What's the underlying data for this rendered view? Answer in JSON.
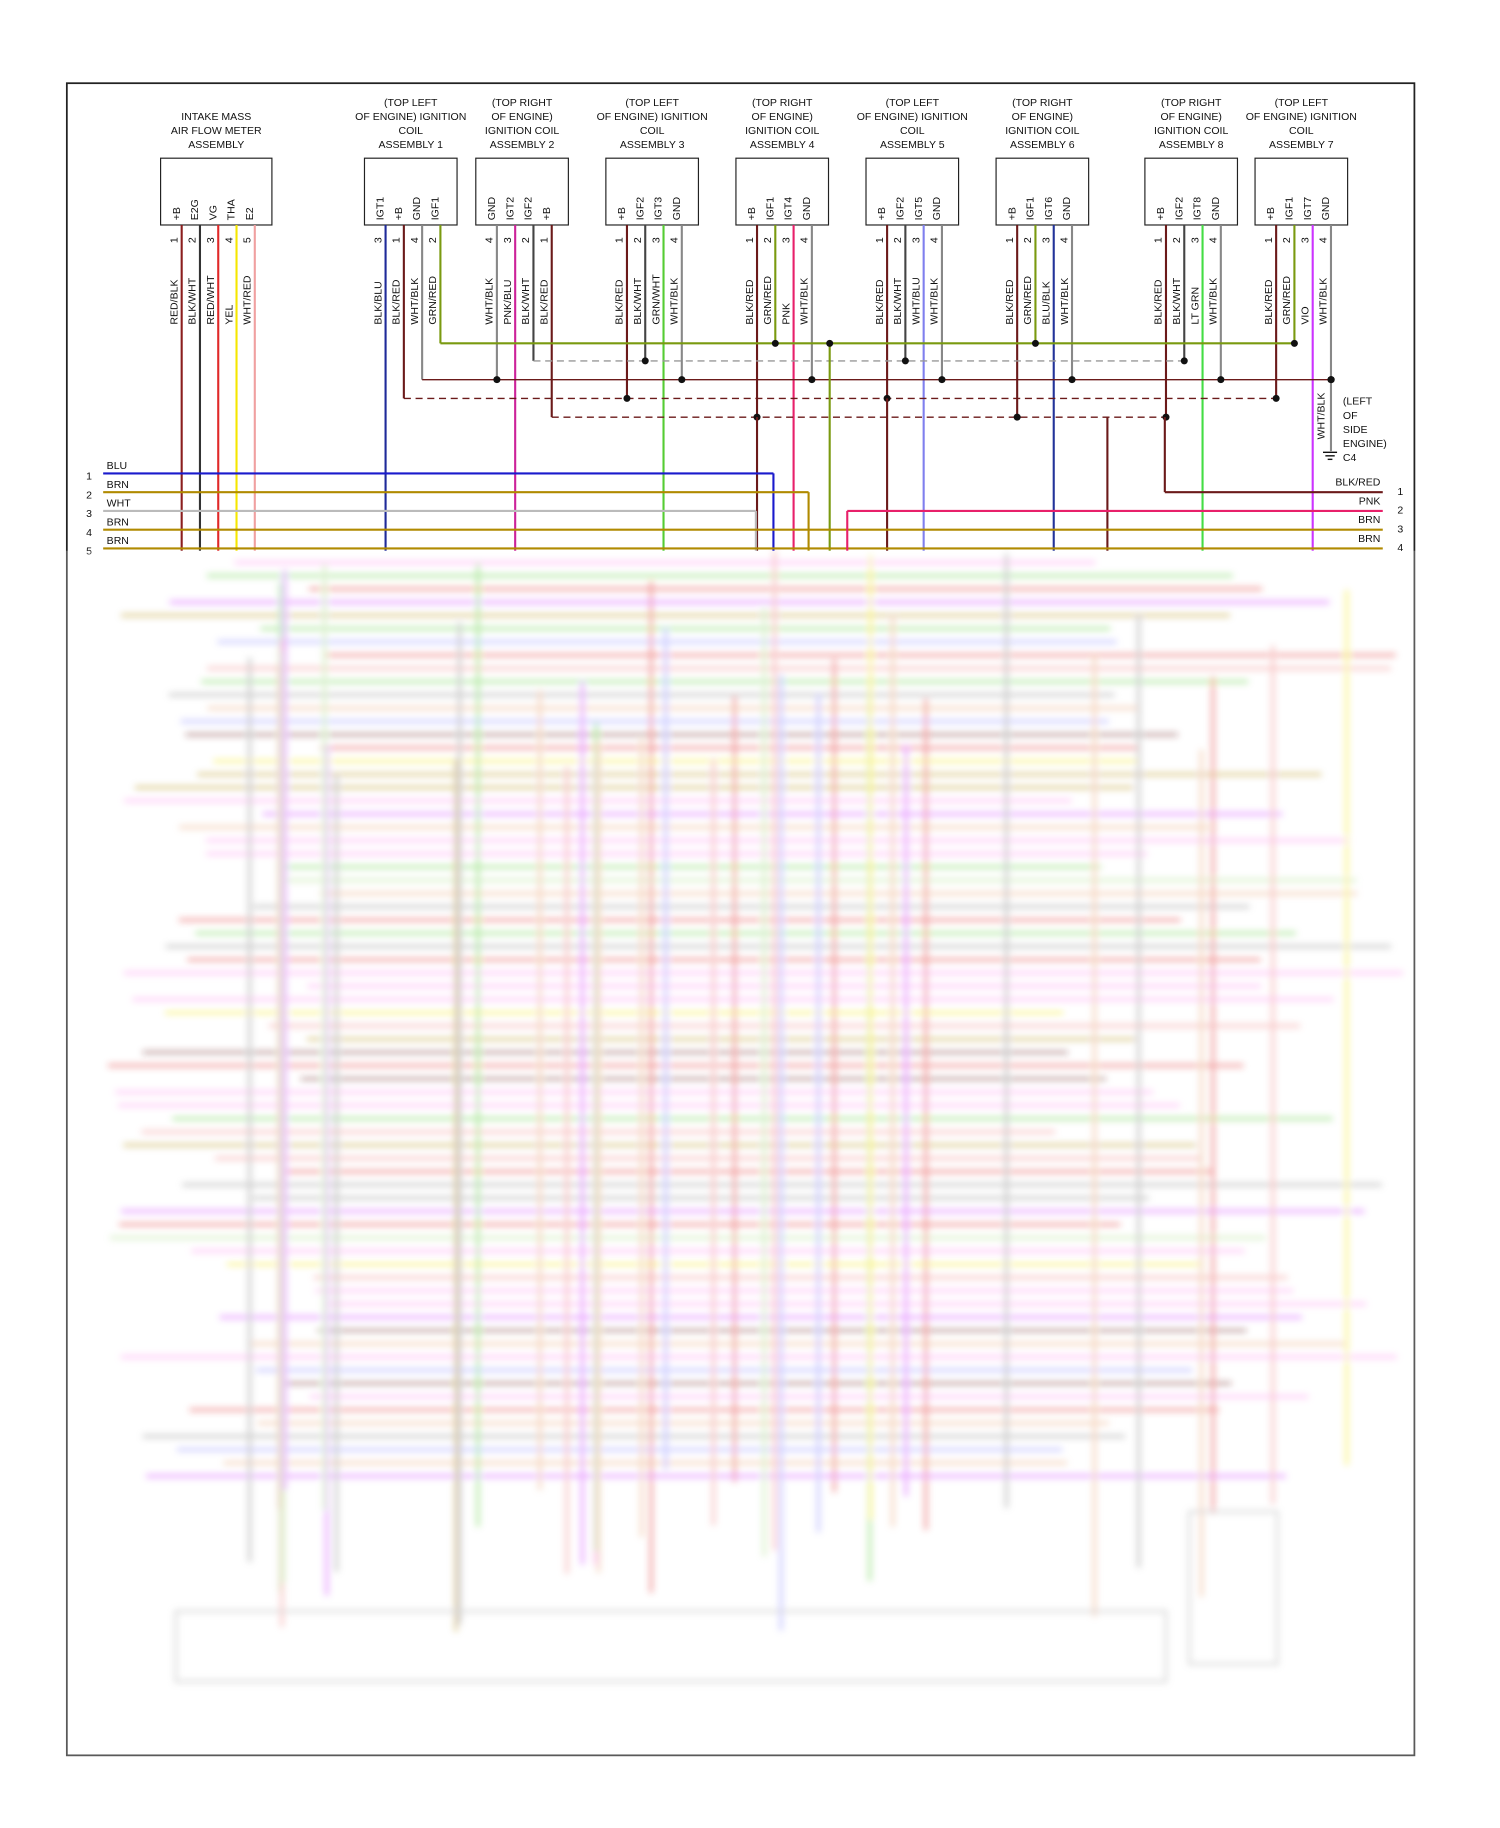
{
  "components": [
    {
      "label": [
        "INTAKE MASS",
        "AIR FLOW METER",
        "ASSEMBLY"
      ],
      "pins": [
        {
          "pin": 1,
          "name": "+B",
          "wire": "RED/BLK",
          "color": "#8b1e1e"
        },
        {
          "pin": 2,
          "name": "E2G",
          "wire": "BLK/WHT",
          "color": "#333333"
        },
        {
          "pin": 3,
          "name": "VG",
          "wire": "RED/WHT",
          "color": "#e02828"
        },
        {
          "pin": 4,
          "name": "THA",
          "wire": "YEL",
          "color": "#f5e600"
        },
        {
          "pin": 5,
          "name": "E2",
          "wire": "WHT/RED",
          "color": "#f0a0a0"
        }
      ]
    },
    {
      "label": [
        "(TOP LEFT",
        "OF ENGINE) IGNITION",
        "COIL",
        "ASSEMBLY 1"
      ],
      "pins": [
        {
          "pin": 3,
          "name": "IGT1",
          "wire": "BLK/BLU",
          "color": "#1f2a99"
        },
        {
          "pin": 1,
          "name": "+B",
          "wire": "BLK/RED",
          "color": "#6b1a1a"
        },
        {
          "pin": 4,
          "name": "GND",
          "wire": "WHT/BLK",
          "color": "#888888"
        },
        {
          "pin": 2,
          "name": "IGF1",
          "wire": "GRN/RED",
          "color": "#7a9a10"
        }
      ]
    },
    {
      "label": [
        "(TOP RIGHT",
        "OF ENGINE)",
        "IGNITION COIL",
        "ASSEMBLY 2"
      ],
      "pins": [
        {
          "pin": 4,
          "name": "GND",
          "wire": "WHT/BLK",
          "color": "#888888"
        },
        {
          "pin": 3,
          "name": "IGT2",
          "wire": "PNK/BLU",
          "color": "#cc2299"
        },
        {
          "pin": 2,
          "name": "IGF2",
          "wire": "BLK/WHT",
          "color": "#444444"
        },
        {
          "pin": 1,
          "name": "+B",
          "wire": "BLK/RED",
          "color": "#6b1a1a"
        }
      ]
    },
    {
      "label": [
        "(TOP LEFT",
        "OF ENGINE) IGNITION",
        "COIL",
        "ASSEMBLY 3"
      ],
      "pins": [
        {
          "pin": 1,
          "name": "+B",
          "wire": "BLK/RED",
          "color": "#6b1a1a"
        },
        {
          "pin": 2,
          "name": "IGF2",
          "wire": "BLK/WHT",
          "color": "#444444"
        },
        {
          "pin": 3,
          "name": "IGT3",
          "wire": "GRN/WHT",
          "color": "#55cc33"
        },
        {
          "pin": 4,
          "name": "GND",
          "wire": "WHT/BLK",
          "color": "#888888"
        }
      ]
    },
    {
      "label": [
        "(TOP RIGHT",
        "OF ENGINE)",
        "IGNITION COIL",
        "ASSEMBLY 4"
      ],
      "pins": [
        {
          "pin": 1,
          "name": "+B",
          "wire": "BLK/RED",
          "color": "#6b1a1a"
        },
        {
          "pin": 2,
          "name": "IGF1",
          "wire": "GRN/RED",
          "color": "#7a9a10"
        },
        {
          "pin": 3,
          "name": "IGT4",
          "wire": "PNK",
          "color": "#e8206a"
        },
        {
          "pin": 4,
          "name": "GND",
          "wire": "WHT/BLK",
          "color": "#888888"
        }
      ]
    },
    {
      "label": [
        "(TOP LEFT",
        "OF ENGINE) IGNITION",
        "COIL",
        "ASSEMBLY 5"
      ],
      "pins": [
        {
          "pin": 1,
          "name": "+B",
          "wire": "BLK/RED",
          "color": "#6b1a1a"
        },
        {
          "pin": 2,
          "name": "IGF2",
          "wire": "BLK/WHT",
          "color": "#444444"
        },
        {
          "pin": 3,
          "name": "IGT5",
          "wire": "WHT/BLU",
          "color": "#7f7fee"
        },
        {
          "pin": 4,
          "name": "GND",
          "wire": "WHT/BLK",
          "color": "#888888"
        }
      ]
    },
    {
      "label": [
        "(TOP RIGHT",
        "OF ENGINE)",
        "IGNITION COIL",
        "ASSEMBLY 6"
      ],
      "pins": [
        {
          "pin": 1,
          "name": "+B",
          "wire": "BLK/RED",
          "color": "#6b1a1a"
        },
        {
          "pin": 2,
          "name": "IGF1",
          "wire": "GRN/RED",
          "color": "#7a9a10"
        },
        {
          "pin": 3,
          "name": "IGT6",
          "wire": "BLU/BLK",
          "color": "#223399"
        },
        {
          "pin": 4,
          "name": "GND",
          "wire": "WHT/BLK",
          "color": "#888888"
        }
      ]
    },
    {
      "label": [
        "(TOP RIGHT",
        "OF ENGINE)",
        "IGNITION COIL",
        "ASSEMBLY 8"
      ],
      "pins": [
        {
          "pin": 1,
          "name": "+B",
          "wire": "BLK/RED",
          "color": "#6b1a1a"
        },
        {
          "pin": 2,
          "name": "IGF2",
          "wire": "BLK/WHT",
          "color": "#444444"
        },
        {
          "pin": 3,
          "name": "IGT8",
          "wire": "LT GRN",
          "color": "#44dd44"
        },
        {
          "pin": 4,
          "name": "GND",
          "wire": "WHT/BLK",
          "color": "#888888"
        }
      ]
    },
    {
      "label": [
        "(TOP LEFT",
        "OF ENGINE) IGNITION",
        "COIL",
        "ASSEMBLY 7"
      ],
      "pins": [
        {
          "pin": 1,
          "name": "+B",
          "wire": "BLK/RED",
          "color": "#6b1a1a"
        },
        {
          "pin": 2,
          "name": "IGF1",
          "wire": "GRN/RED",
          "color": "#7a9a10"
        },
        {
          "pin": 3,
          "name": "IGT7",
          "wire": "VIO",
          "color": "#cc33ff"
        },
        {
          "pin": 4,
          "name": "GND",
          "wire": "WHT/BLK",
          "color": "#888888"
        }
      ]
    }
  ],
  "ground": {
    "wire": "WHT/BLK",
    "label": [
      "(LEFT",
      "OF",
      "SIDE",
      "ENGINE)"
    ],
    "id": "C4"
  },
  "left_connector": [
    {
      "pin": 1,
      "wire": "BLU",
      "color": "#1a1acc"
    },
    {
      "pin": 2,
      "wire": "BRN",
      "color": "#b08a00"
    },
    {
      "pin": 3,
      "wire": "WHT",
      "color": "#bbbbbb"
    },
    {
      "pin": 4,
      "wire": "BRN",
      "color": "#b08a00"
    },
    {
      "pin": 5,
      "wire": "BRN",
      "color": "#b08a00"
    }
  ],
  "right_connector": [
    {
      "pin": 1,
      "wire": "BLK/RED",
      "color": "#6b1a1a"
    },
    {
      "pin": 2,
      "wire": "PNK",
      "color": "#e8206a"
    },
    {
      "pin": 3,
      "wire": "BRN",
      "color": "#b08a00"
    },
    {
      "pin": 4,
      "wire": "BRN",
      "color": "#b08a00"
    }
  ]
}
